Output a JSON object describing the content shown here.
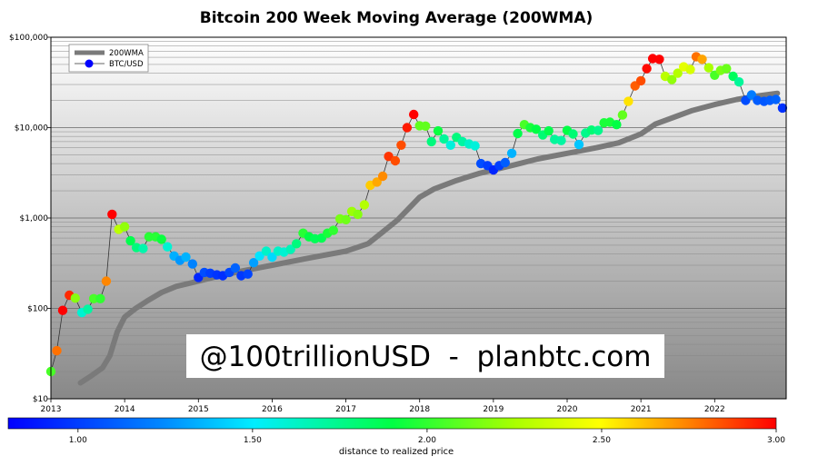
{
  "chart_data": {
    "type": "scatter",
    "title": "Bitcoin 200 Week Moving Average (200WMA)",
    "x_range": [
      2013.0,
      2022.97
    ],
    "y_scale": "log",
    "y_range": [
      10,
      100000
    ],
    "y_tick_labels": [
      "$10",
      "$100",
      "$1,000",
      "$10,000",
      "$100,000"
    ],
    "y_tick_values": [
      10,
      100,
      1000,
      10000,
      100000
    ],
    "x_tick_labels": [
      "2013",
      "2014",
      "2015",
      "2016",
      "2017",
      "2018",
      "2019",
      "2020",
      "2021",
      "2022"
    ],
    "x_tick_values": [
      2013,
      2014,
      2015,
      2016,
      2017,
      2018,
      2019,
      2020,
      2021,
      2022
    ],
    "grid": true,
    "legend": {
      "placement": "top-left",
      "entries": [
        "200WMA",
        "BTC/USD"
      ]
    },
    "series_200wma": {
      "name": "200WMA",
      "color": "#7a7a7a",
      "x": [
        2013.4,
        2013.55,
        2013.7,
        2013.8,
        2013.9,
        2014.0,
        2014.15,
        2014.3,
        2014.5,
        2014.7,
        2015.0,
        2015.3,
        2015.6,
        2016.0,
        2016.5,
        2017.0,
        2017.3,
        2017.5,
        2017.7,
        2017.9,
        2018.0,
        2018.2,
        2018.5,
        2018.8,
        2019.0,
        2019.3,
        2019.6,
        2020.0,
        2020.4,
        2020.7,
        2021.0,
        2021.2,
        2021.5,
        2021.7,
        2022.0,
        2022.3,
        2022.6,
        2022.85
      ],
      "y": [
        15,
        18,
        22,
        30,
        55,
        80,
        100,
        120,
        150,
        175,
        200,
        230,
        260,
        300,
        360,
        430,
        520,
        700,
        950,
        1400,
        1700,
        2100,
        2600,
        3100,
        3400,
        3900,
        4500,
        5200,
        6000,
        6800,
        8500,
        11000,
        13500,
        15500,
        18000,
        20500,
        22500,
        24000
      ]
    },
    "series_btc": {
      "name": "BTC/USD",
      "color_by": "distance to realized price",
      "x": [
        2013.0,
        2013.08,
        2013.16,
        2013.25,
        2013.33,
        2013.42,
        2013.5,
        2013.58,
        2013.67,
        2013.75,
        2013.83,
        2013.92,
        2014.0,
        2014.08,
        2014.16,
        2014.25,
        2014.33,
        2014.42,
        2014.5,
        2014.58,
        2014.67,
        2014.75,
        2014.83,
        2014.92,
        2015.0,
        2015.08,
        2015.16,
        2015.25,
        2015.33,
        2015.42,
        2015.5,
        2015.58,
        2015.67,
        2015.75,
        2015.83,
        2015.92,
        2016.0,
        2016.08,
        2016.16,
        2016.25,
        2016.33,
        2016.42,
        2016.5,
        2016.58,
        2016.67,
        2016.75,
        2016.83,
        2016.92,
        2017.0,
        2017.08,
        2017.16,
        2017.25,
        2017.33,
        2017.42,
        2017.5,
        2017.58,
        2017.67,
        2017.75,
        2017.83,
        2017.92,
        2018.0,
        2018.08,
        2018.16,
        2018.25,
        2018.33,
        2018.42,
        2018.5,
        2018.58,
        2018.67,
        2018.75,
        2018.83,
        2018.92,
        2019.0,
        2019.08,
        2019.16,
        2019.25,
        2019.33,
        2019.42,
        2019.5,
        2019.58,
        2019.67,
        2019.75,
        2019.83,
        2019.92,
        2020.0,
        2020.08,
        2020.16,
        2020.25,
        2020.33,
        2020.42,
        2020.5,
        2020.58,
        2020.67,
        2020.75,
        2020.83,
        2020.92,
        2021.0,
        2021.08,
        2021.16,
        2021.25,
        2021.33,
        2021.42,
        2021.5,
        2021.58,
        2021.67,
        2021.75,
        2021.83,
        2021.92,
        2022.0,
        2022.08,
        2022.16,
        2022.25,
        2022.33,
        2022.42,
        2022.5,
        2022.58,
        2022.67,
        2022.75,
        2022.83,
        2022.92
      ],
      "y": [
        20,
        34,
        95,
        140,
        130,
        90,
        98,
        128,
        128,
        200,
        1100,
        750,
        800,
        560,
        470,
        460,
        620,
        620,
        580,
        480,
        380,
        340,
        370,
        310,
        220,
        250,
        245,
        235,
        230,
        250,
        280,
        230,
        240,
        320,
        380,
        430,
        370,
        430,
        420,
        450,
        520,
        680,
        620,
        590,
        600,
        680,
        730,
        980,
        960,
        1180,
        1100,
        1400,
        2300,
        2500,
        2900,
        4800,
        4300,
        6400,
        10000,
        14000,
        10500,
        10400,
        7000,
        9200,
        7500,
        6400,
        7800,
        7000,
        6600,
        6300,
        4000,
        3800,
        3400,
        3800,
        4100,
        5200,
        8600,
        10800,
        10000,
        9600,
        8300,
        9200,
        7400,
        7200,
        9300,
        8500,
        6500,
        8700,
        9400,
        9300,
        11300,
        11500,
        10800,
        13800,
        19500,
        29000,
        33000,
        45000,
        58000,
        57000,
        37000,
        34000,
        40000,
        47000,
        44000,
        61000,
        57000,
        46000,
        38000,
        43000,
        45000,
        37000,
        32000,
        20000,
        23000,
        20000,
        19500,
        20000,
        20500,
        16500
      ],
      "d": [
        2.05,
        2.78,
        3.0,
        2.92,
        2.18,
        1.6,
        1.7,
        2.05,
        2.0,
        2.74,
        3.0,
        2.3,
        2.2,
        1.88,
        1.78,
        1.68,
        1.98,
        1.98,
        1.92,
        1.6,
        1.34,
        1.28,
        1.35,
        1.22,
        0.92,
        1.05,
        1.0,
        0.97,
        0.95,
        1.03,
        1.12,
        0.98,
        1.02,
        1.3,
        1.48,
        1.62,
        1.45,
        1.62,
        1.6,
        1.66,
        1.78,
        1.98,
        1.9,
        1.86,
        1.87,
        1.95,
        2.0,
        2.15,
        2.13,
        2.22,
        2.18,
        2.28,
        2.6,
        2.67,
        2.73,
        2.9,
        2.85,
        2.85,
        2.95,
        3.0,
        2.1,
        2.1,
        1.78,
        1.92,
        1.72,
        1.58,
        1.78,
        1.7,
        1.62,
        1.58,
        1.05,
        1.0,
        0.92,
        1.0,
        1.1,
        1.35,
        1.88,
        2.05,
        1.95,
        1.9,
        1.8,
        1.88,
        1.72,
        1.7,
        1.9,
        1.8,
        1.4,
        1.75,
        1.8,
        1.75,
        1.95,
        1.95,
        1.9,
        2.1,
        2.55,
        2.82,
        2.85,
        2.98,
        3.0,
        3.0,
        2.3,
        2.2,
        2.28,
        2.42,
        2.38,
        2.78,
        2.68,
        2.25,
        2.05,
        2.15,
        2.12,
        1.85,
        1.72,
        1.05,
        1.2,
        1.1,
        1.08,
        1.1,
        1.12,
        0.96
      ]
    },
    "colorbar": {
      "label": "distance to realized price",
      "ticks": [
        "1.00",
        "1.50",
        "2.00",
        "2.50",
        "3.00"
      ],
      "range": [
        0.8,
        3.0
      ]
    },
    "annotation": "@100trillionUSD  -  planbtc.com"
  }
}
